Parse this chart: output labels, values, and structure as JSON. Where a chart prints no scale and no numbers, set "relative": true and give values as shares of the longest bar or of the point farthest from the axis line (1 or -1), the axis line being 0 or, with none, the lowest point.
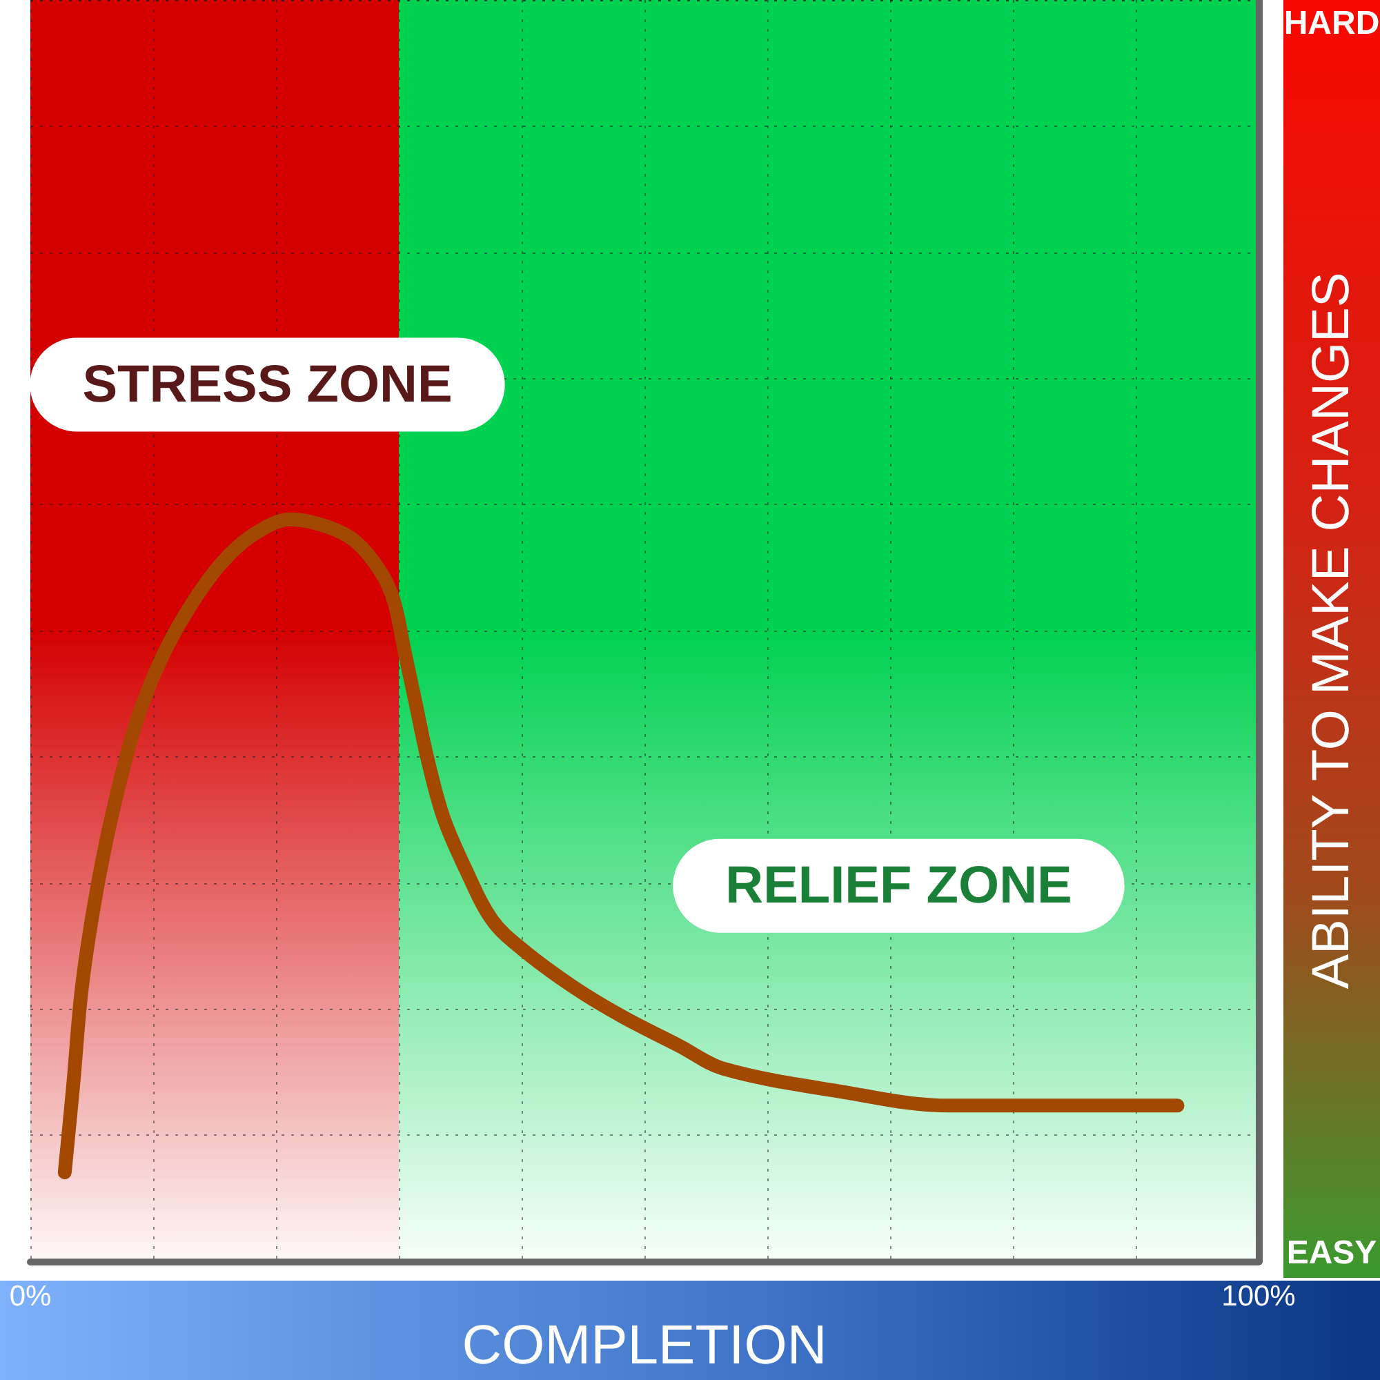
{
  "chart_data": {
    "type": "line",
    "xlabel": "COMPLETION",
    "ylabel": "ABILITY TO MAKE CHANGES",
    "annotations": [
      "HARD",
      "EASY"
    ],
    "relative": true,
    "xlim": [
      0,
      100
    ],
    "xticks": [
      {
        "value": 0,
        "label": "0%"
      },
      {
        "value": 10,
        "label": null
      },
      {
        "value": 20,
        "label": null
      },
      {
        "value": 30,
        "label": null
      },
      {
        "value": 40,
        "label": null
      },
      {
        "value": 50,
        "label": null
      },
      {
        "value": 60,
        "label": null
      },
      {
        "value": 70,
        "label": null
      },
      {
        "value": 80,
        "label": null
      },
      {
        "value": 90,
        "label": null
      },
      {
        "value": 100,
        "label": "100%"
      }
    ],
    "x": [
      2.8,
      3.5,
      4.2,
      5.4,
      6.9,
      8.7,
      10.6,
      12.9,
      15.5,
      18.2,
      21.2,
      24.2,
      26.5,
      28.5,
      29.6,
      30.5,
      31.4,
      32.3,
      33.6,
      35.4,
      37.6,
      40.1,
      44.2,
      48.2,
      52.9,
      56.4,
      65.6,
      74.9,
      84.0,
      93.4
    ],
    "series": [
      {
        "color": "#a34800",
        "values": [
          0.12,
          0.24,
          0.37,
          0.5,
          0.62,
          0.73,
          0.81,
          0.88,
          0.94,
          0.98,
          1.0,
          0.99,
          0.97,
          0.93,
          0.89,
          0.82,
          0.75,
          0.68,
          0.6,
          0.53,
          0.46,
          0.42,
          0.37,
          0.33,
          0.29,
          0.26,
          0.23,
          0.21,
          0.21,
          0.21
        ]
      }
    ],
    "bands": [
      {
        "axis": "x",
        "from": 0,
        "to": 30,
        "label": "STRESS ZONE",
        "color": "#d40000"
      },
      {
        "axis": "x",
        "from": 30,
        "to": 100,
        "label": "RELIEF ZONE",
        "color": "#00d150"
      }
    ],
    "grid": true,
    "line_style": "solid"
  }
}
